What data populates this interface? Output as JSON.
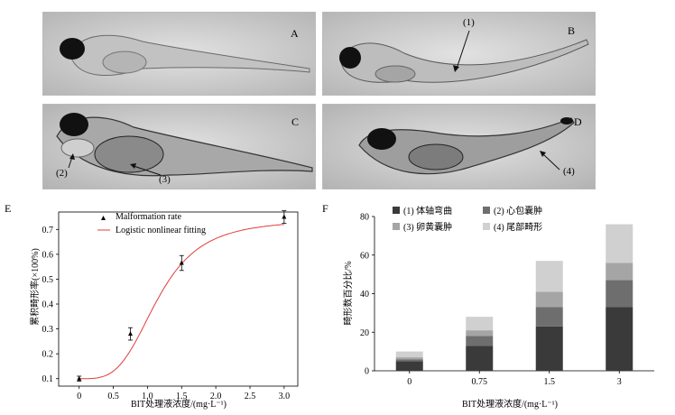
{
  "photos": [
    {
      "letter": "A",
      "annotations": []
    },
    {
      "letter": "B",
      "annotations": [
        "(1)"
      ]
    },
    {
      "letter": "C",
      "annotations": [
        "(2)",
        "(3)"
      ]
    },
    {
      "letter": "D",
      "annotations": [
        "(4)"
      ]
    }
  ],
  "chart_data": [
    {
      "panel": "E",
      "type": "scatter",
      "xlabel": "BIT处理液浓度/(mg·L⁻¹)",
      "ylabel": "累积畸形率(×100%)",
      "xlim": [
        -0.3,
        3.2
      ],
      "ylim": [
        0.07,
        0.77
      ],
      "xticks": [
        "0",
        "0.5",
        "1.0",
        "1.5",
        "2.0",
        "2.5",
        "3.0"
      ],
      "yticks": [
        "0.1",
        "0.2",
        "0.3",
        "0.4",
        "0.5",
        "0.6",
        "0.7"
      ],
      "legend": [
        "Malformation rate",
        "Logistic nonlinear fitting"
      ],
      "points": [
        {
          "x": 0,
          "y": 0.1,
          "err": 0.01
        },
        {
          "x": 0.75,
          "y": 0.28,
          "err": 0.025
        },
        {
          "x": 1.5,
          "y": 0.565,
          "err": 0.03
        },
        {
          "x": 3.0,
          "y": 0.75,
          "err": 0.025
        }
      ],
      "fit_color": "#e03c3c"
    },
    {
      "panel": "F",
      "type": "bar",
      "stacked": true,
      "xlabel": "BIT处理液浓度/(mg·L⁻¹)",
      "ylabel": "畸形数百分比/%",
      "categories": [
        "0",
        "0.75",
        "1.5",
        "3"
      ],
      "ylim": [
        0,
        80
      ],
      "yticks": [
        "0",
        "20",
        "40",
        "60",
        "80"
      ],
      "series": [
        {
          "name": "(1) 体轴弯曲",
          "color": "#3a3a3a",
          "values": [
            5,
            13,
            23,
            33
          ]
        },
        {
          "name": "(2) 心包囊肿",
          "color": "#6e6e6e",
          "values": [
            1,
            5,
            10,
            14
          ]
        },
        {
          "name": "(3) 卵黄囊肿",
          "color": "#a5a5a5",
          "values": [
            1,
            3,
            8,
            9
          ]
        },
        {
          "name": "(4) 尾部畸形",
          "color": "#d0d0d0",
          "values": [
            3,
            7,
            16,
            20
          ]
        }
      ]
    }
  ]
}
